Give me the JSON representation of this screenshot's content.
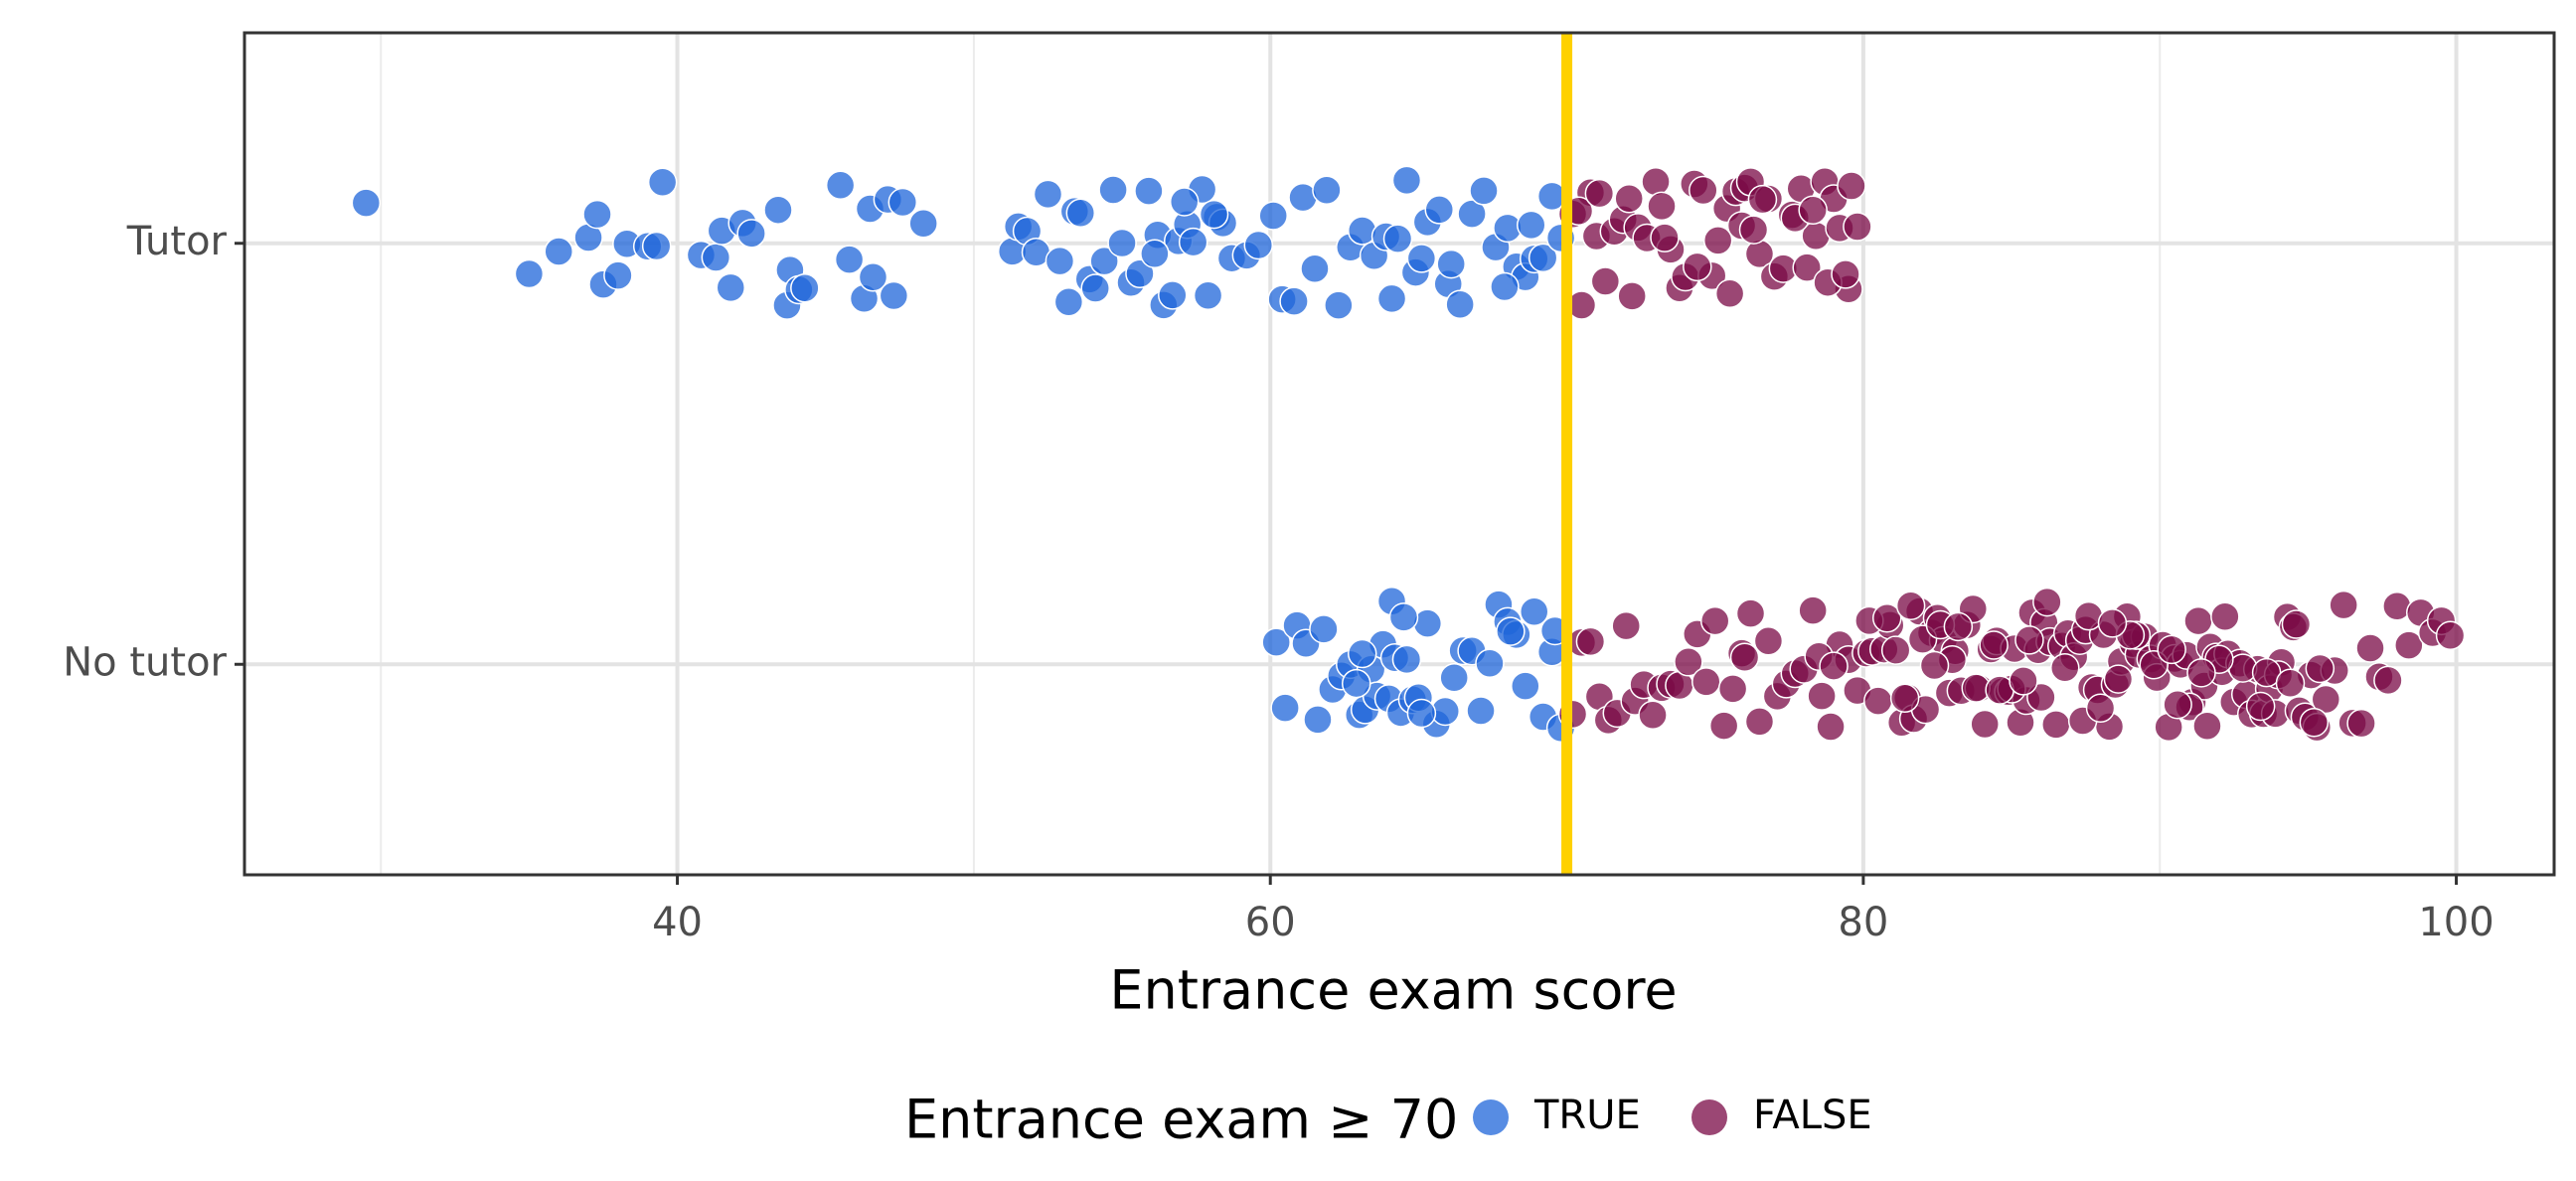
{
  "chart_data": {
    "type": "strip",
    "xlabel": "Entrance exam score",
    "legend_title": "Entrance exam ≥ 70",
    "legend_position": "bottom",
    "categories": [
      "Tutor",
      "No tutor"
    ],
    "xlim": [
      25.4,
      103.3
    ],
    "xticks": [
      40,
      60,
      80,
      100
    ],
    "minor_xticks": [
      30,
      50,
      70,
      90
    ],
    "grid": true,
    "threshold": 70,
    "threshold_color": "#ffd100",
    "series": [
      {
        "name": "TRUE",
        "color": "#1f66d9",
        "x": [
          [
            29.5,
            35,
            36,
            37,
            37.3,
            37.5,
            38,
            38.3,
            39,
            39.3,
            39.5,
            40.8,
            41.3,
            41.5,
            41.8,
            42.2,
            42.5,
            43.4,
            43.7,
            43.8,
            44.1,
            44.3,
            45.5,
            45.8,
            46.3,
            46.5,
            46.6,
            47.1,
            47.3,
            47.6,
            48.3,
            51.3,
            51.5,
            51.8,
            52.1,
            52.5,
            52.9,
            53.2,
            53.4,
            53.6,
            53.9,
            54.1,
            54.4,
            54.7,
            55,
            55.3,
            55.6,
            55.9,
            56.2,
            56.4,
            56.7,
            56.9,
            57.2,
            57.4,
            57.7,
            57.9,
            58.2,
            58.4,
            58.7,
            59.2,
            59.6,
            60.1,
            60.4,
            60.8,
            61.1,
            61.5,
            61.9,
            62.3,
            62.7,
            63.1,
            63.5,
            63.9,
            64.3,
            64.6,
            64.9,
            65.3,
            65.7,
            66,
            66.4,
            66.8,
            67.2,
            67.6,
            68,
            68.3,
            68.6,
            68.9,
            69.2,
            69.5,
            69.8,
            56.1,
            57.1,
            58.1,
            64.1,
            65.1,
            66.1,
            67.9,
            68.8
          ],
          [
            60.2,
            60.5,
            60.9,
            61.2,
            61.6,
            61.8,
            62.1,
            62.4,
            62.7,
            63,
            63.2,
            63.4,
            63.6,
            63.8,
            64,
            64.2,
            64.4,
            64.6,
            64.8,
            65,
            65.3,
            65.6,
            65.9,
            66.2,
            66.5,
            66.8,
            67.1,
            67.4,
            67.7,
            68,
            68.3,
            68.6,
            68.9,
            69.2,
            69.5,
            69.8,
            63.1,
            64.1,
            64.5,
            65.1,
            62.9,
            68.1,
            69.6
          ]
        ]
      },
      {
        "name": "FALSE",
        "color": "#7a0a45",
        "x": [
          [
            70.2,
            70.5,
            70.8,
            71,
            71.3,
            71.6,
            71.9,
            72.1,
            72.4,
            72.7,
            73,
            73.2,
            73.5,
            73.8,
            74,
            74.3,
            74.6,
            74.9,
            75.1,
            75.4,
            75.7,
            76,
            76.2,
            76.5,
            76.8,
            77,
            77.3,
            77.6,
            77.9,
            78.1,
            78.4,
            78.7,
            79,
            79.2,
            79.5,
            79.8,
            70.4,
            71.1,
            72.2,
            73.3,
            74.4,
            75.5,
            76.6,
            77.7,
            78.8,
            79.4,
            75.9,
            76.3,
            78.3,
            79.6
          ],
          [
            70.2,
            70.5,
            70.8,
            71.1,
            71.4,
            71.7,
            72,
            72.3,
            72.6,
            72.9,
            73.2,
            73.5,
            73.8,
            74.1,
            74.4,
            74.7,
            75,
            75.3,
            75.6,
            75.9,
            76.2,
            76.5,
            76.8,
            77.1,
            77.4,
            77.7,
            78,
            78.3,
            78.6,
            78.9,
            79.2,
            79.5,
            79.8,
            80.1,
            80.3,
            80.5,
            80.7,
            80.9,
            81.1,
            81.3,
            81.5,
            81.7,
            81.9,
            82.1,
            82.3,
            82.5,
            82.7,
            82.9,
            83.1,
            83.3,
            83.5,
            83.7,
            83.9,
            84.1,
            84.3,
            84.5,
            84.7,
            84.9,
            85.1,
            85.3,
            85.5,
            85.7,
            85.9,
            86.1,
            86.3,
            86.5,
            86.7,
            86.9,
            87.1,
            87.3,
            87.5,
            87.7,
            87.9,
            88.1,
            88.3,
            88.5,
            88.7,
            88.9,
            89.1,
            89.3,
            89.5,
            89.7,
            89.9,
            90.1,
            90.3,
            90.5,
            90.7,
            90.9,
            91.1,
            91.3,
            91.5,
            91.7,
            91.9,
            92.1,
            92.3,
            92.5,
            92.7,
            92.9,
            93.1,
            93.3,
            93.5,
            93.7,
            93.9,
            94.1,
            94.3,
            94.5,
            94.7,
            94.9,
            95.1,
            95.3,
            95.6,
            95.9,
            96.2,
            96.5,
            96.8,
            97.1,
            97.4,
            97.7,
            98,
            98.4,
            98.8,
            99.2,
            99.5,
            99.8,
            80.2,
            80.8,
            81.4,
            82,
            82.6,
            83.2,
            83.8,
            84.4,
            85,
            85.6,
            86.2,
            86.8,
            87.4,
            88,
            88.6,
            89.2,
            89.8,
            90.4,
            91,
            91.6,
            92.2,
            92.8,
            93.4,
            94,
            94.6,
            95.2,
            81.6,
            83,
            84.6,
            86,
            87.6,
            89,
            90.6,
            92,
            93.6,
            95.4,
            82.4,
            85.4,
            88.4,
            91.4,
            94.4,
            76,
            78.5,
            79
          ]
        ]
      }
    ]
  }
}
